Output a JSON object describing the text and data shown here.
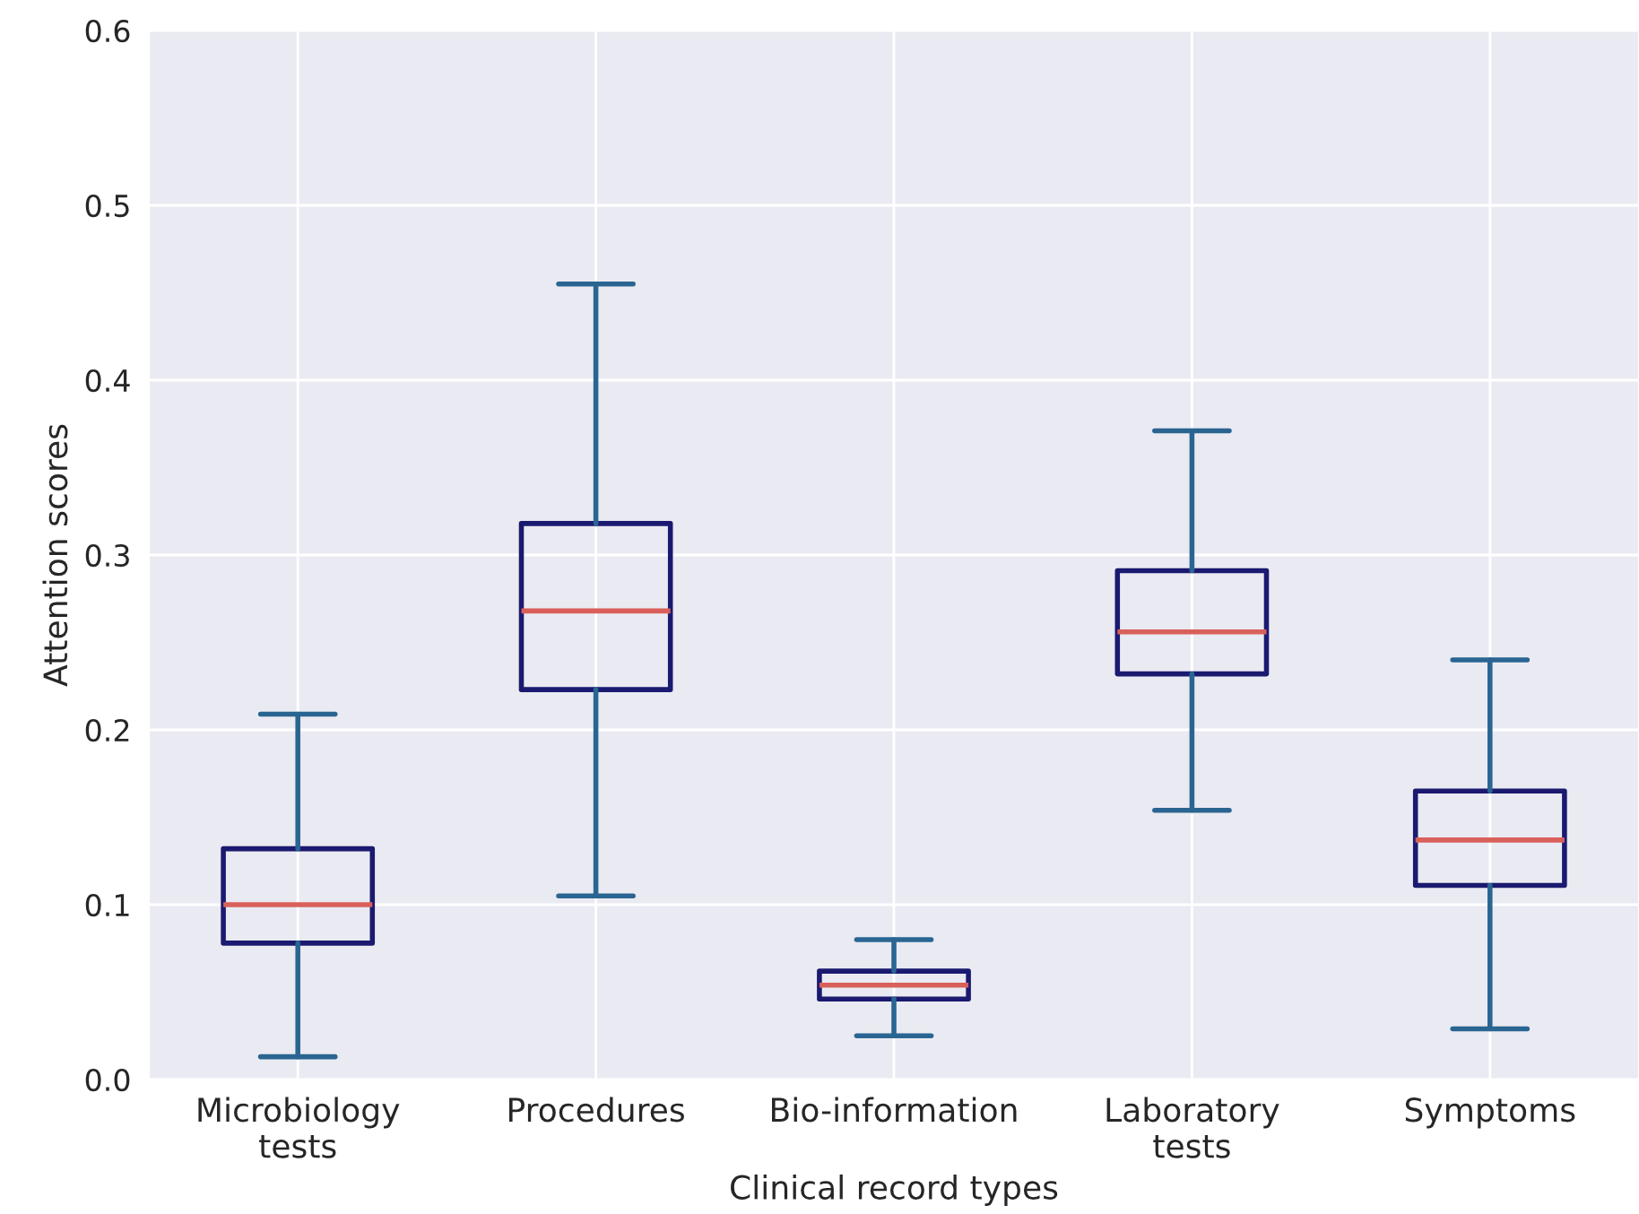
{
  "chart_data": {
    "type": "box",
    "xlabel": "Clinical record types",
    "ylabel": "Attention scores",
    "categories": [
      "Microbiology\ntests",
      "Procedures",
      "Bio-information",
      "Laboratory\ntests",
      "Symptoms"
    ],
    "series": [
      {
        "color": "#1a1a70",
        "boxes": [
          {
            "low": 0.013,
            "q1": 0.078,
            "median": 0.1,
            "q3": 0.132,
            "high": 0.209
          },
          {
            "low": 0.105,
            "q1": 0.223,
            "median": 0.268,
            "q3": 0.318,
            "high": 0.455
          },
          {
            "low": 0.025,
            "q1": 0.046,
            "median": 0.054,
            "q3": 0.062,
            "high": 0.08
          },
          {
            "low": 0.154,
            "q1": 0.232,
            "median": 0.256,
            "q3": 0.291,
            "high": 0.371
          },
          {
            "low": 0.029,
            "q1": 0.111,
            "median": 0.137,
            "q3": 0.165,
            "high": 0.24
          }
        ]
      }
    ],
    "ylim": [
      0,
      0.6
    ],
    "yticks": [
      {
        "value": 0,
        "label": "0.0"
      },
      0.1,
      0.2,
      0.3,
      0.4,
      0.5,
      0.6
    ],
    "grid": true
  }
}
